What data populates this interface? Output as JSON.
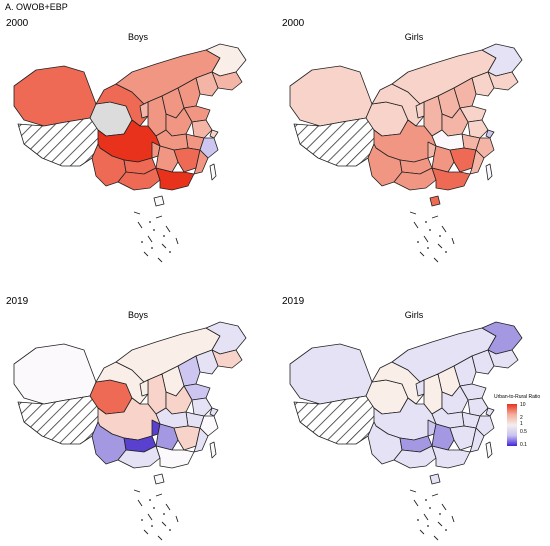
{
  "figure": {
    "title": "A. OWOB+EBP"
  },
  "panels": [
    {
      "year": "2000",
      "group": "Boys",
      "scheme": "boys2000"
    },
    {
      "year": "2000",
      "group": "Girls",
      "scheme": "girls2000"
    },
    {
      "year": "2019",
      "group": "Boys",
      "scheme": "boys2019"
    },
    {
      "year": "2019",
      "group": "Girls",
      "scheme": "girls2019"
    }
  ],
  "legend": {
    "title": "Urban-to-Rural Ratio",
    "ticks": [
      "10",
      "2",
      "1",
      "0.5",
      "0.1"
    ],
    "color_high": "#e8321c",
    "color_mid": "#f4eeec",
    "color_low": "#4424d6",
    "no_data": "#dcdcdc"
  }
}
